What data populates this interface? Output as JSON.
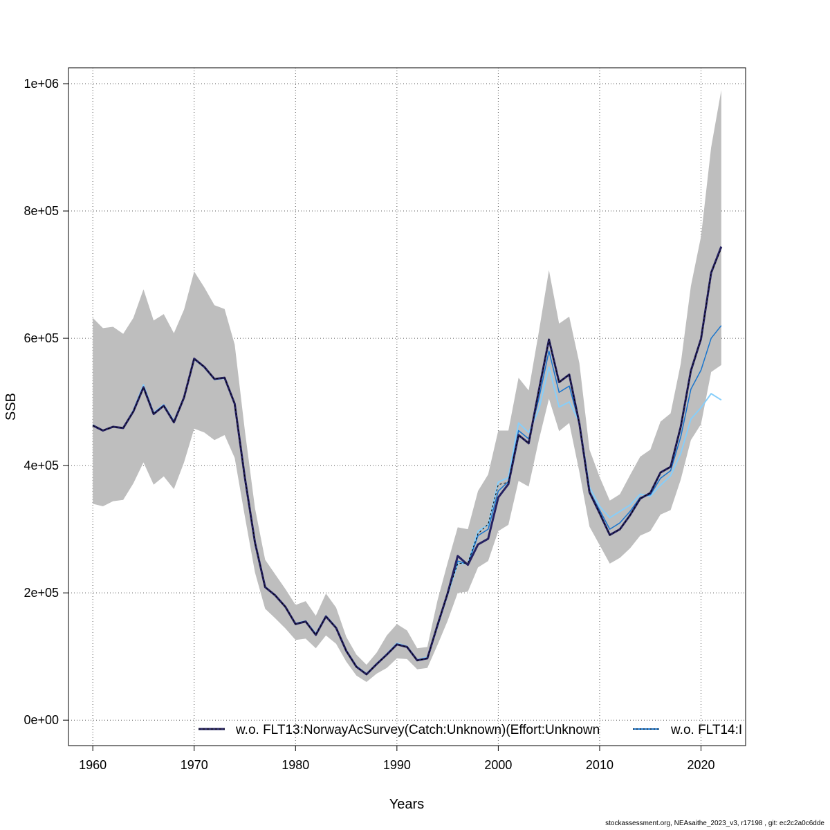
{
  "chart_data": {
    "type": "line",
    "xlabel": "Years",
    "ylabel": "SSB",
    "xlim": [
      1957.6,
      2024.4
    ],
    "ylim": [
      -40000,
      1025000
    ],
    "x_ticks": [
      1960,
      1970,
      1980,
      1990,
      2000,
      2010,
      2020
    ],
    "x_tick_labels": [
      "1960",
      "1970",
      "1980",
      "1990",
      "2000",
      "2010",
      "2020"
    ],
    "y_ticks": [
      0,
      200000,
      400000,
      600000,
      800000,
      1000000
    ],
    "y_tick_labels": [
      "0e+00",
      "2e+05",
      "4e+05",
      "6e+05",
      "8e+05",
      "1e+06"
    ],
    "grid": true,
    "legend_position": "bottom",
    "x": [
      1960,
      1961,
      1962,
      1963,
      1964,
      1965,
      1966,
      1967,
      1968,
      1969,
      1970,
      1971,
      1972,
      1973,
      1974,
      1975,
      1976,
      1977,
      1978,
      1979,
      1980,
      1981,
      1982,
      1983,
      1984,
      1985,
      1986,
      1987,
      1988,
      1989,
      1990,
      1991,
      1992,
      1993,
      1994,
      1995,
      1996,
      1997,
      1998,
      1999,
      2000,
      2001,
      2002,
      2003,
      2004,
      2005,
      2006,
      2007,
      2008,
      2009,
      2010,
      2011,
      2012,
      2013,
      2014,
      2015,
      2016,
      2017,
      2018,
      2019,
      2020,
      2021,
      2022
    ],
    "band": {
      "lower": [
        340000,
        336000,
        344000,
        346000,
        372000,
        405000,
        370000,
        383000,
        363000,
        405000,
        458000,
        452000,
        440000,
        448000,
        412000,
        320000,
        232000,
        175000,
        160000,
        144000,
        126000,
        128000,
        113000,
        133000,
        120000,
        92000,
        70000,
        60000,
        73000,
        82000,
        97000,
        96000,
        80000,
        82000,
        118000,
        156000,
        200000,
        202000,
        240000,
        250000,
        297000,
        307000,
        376000,
        367000,
        440000,
        505000,
        454000,
        467000,
        390000,
        304000,
        275000,
        246000,
        255000,
        270000,
        290000,
        297000,
        323000,
        330000,
        378000,
        440000,
        465000,
        547000,
        558000
      ],
      "upper": [
        632000,
        616000,
        618000,
        607000,
        632000,
        677000,
        628000,
        638000,
        608000,
        645000,
        705000,
        680000,
        652000,
        646000,
        590000,
        455000,
        333000,
        252000,
        229000,
        206000,
        181000,
        187000,
        164000,
        199000,
        177000,
        131000,
        103000,
        87000,
        106000,
        133000,
        151000,
        141000,
        113000,
        115000,
        188000,
        247000,
        303000,
        300000,
        360000,
        386000,
        455000,
        455000,
        538000,
        518000,
        610000,
        707000,
        623000,
        634000,
        561000,
        425000,
        382000,
        345000,
        355000,
        385000,
        414000,
        425000,
        469000,
        482000,
        560000,
        682000,
        760000,
        900000,
        990000
      ]
    },
    "series": [
      {
        "name": "w.o. FLT13:NorwayAcSurvey(Catch:Unknown)(Effort:Unknown",
        "color": "#262262",
        "style": "solid-thick",
        "values": [
          463000,
          455000,
          461000,
          459000,
          485000,
          523000,
          481000,
          494000,
          468000,
          507000,
          568000,
          555000,
          536000,
          538000,
          497000,
          381000,
          279000,
          209000,
          196000,
          178000,
          151000,
          155000,
          134000,
          163000,
          145000,
          109000,
          84000,
          72000,
          88000,
          103000,
          119000,
          115000,
          94000,
          97000,
          149000,
          199000,
          258000,
          244000,
          276000,
          285000,
          350000,
          371000,
          448000,
          435000,
          518000,
          598000,
          531000,
          543000,
          466000,
          358000,
          325000,
          291000,
          300000,
          322000,
          348000,
          357000,
          389000,
          398000,
          461000,
          549000,
          599000,
          703000,
          744000
        ]
      },
      {
        "name": "w.o. FLT13 dashed overlay",
        "color": "#000000",
        "style": "dashed",
        "legend": false,
        "values": [
          463000,
          455000,
          461000,
          459000,
          485000,
          523000,
          481000,
          494000,
          468000,
          507000,
          568000,
          555000,
          536000,
          538000,
          497000,
          381000,
          279000,
          209000,
          196000,
          178000,
          151000,
          155000,
          134000,
          163000,
          145000,
          109000,
          84000,
          72000,
          88000,
          103000,
          119000,
          115000,
          94000,
          97000,
          149000,
          199000,
          246000,
          247000,
          293000,
          308000,
          370000,
          374000,
          448000,
          435000,
          518000,
          598000,
          531000,
          543000,
          466000,
          358000,
          325000,
          291000,
          300000,
          322000,
          348000,
          357000,
          389000,
          398000,
          461000,
          549000,
          599000,
          703000,
          741000
        ]
      },
      {
        "name": "w.o. FLT14:I",
        "color": "#87cefa",
        "style": "solid",
        "values": [
          464000,
          455000,
          461000,
          459000,
          487000,
          527000,
          483000,
          496000,
          470000,
          508000,
          567000,
          554000,
          535000,
          537000,
          496000,
          380000,
          278000,
          210000,
          196000,
          178000,
          152000,
          156000,
          136000,
          164000,
          146000,
          110000,
          85000,
          73000,
          89000,
          104000,
          121000,
          116000,
          95000,
          99000,
          147000,
          197000,
          246000,
          246000,
          297000,
          307000,
          374000,
          381000,
          467000,
          452000,
          488000,
          555000,
          492000,
          500000,
          468000,
          366000,
          336000,
          318000,
          328000,
          338000,
          355000,
          352000,
          369000,
          384000,
          419000,
          473000,
          491000,
          513000,
          503000
        ]
      },
      {
        "name": "w.o. FLT14 base",
        "color": "#1874cd",
        "style": "solid-thin",
        "legend": false,
        "values": [
          463000,
          455000,
          461000,
          459000,
          486000,
          524000,
          482000,
          495000,
          469000,
          507000,
          567000,
          555000,
          536000,
          537000,
          497000,
          381000,
          279000,
          209000,
          196000,
          178000,
          151000,
          155000,
          134000,
          163000,
          145000,
          109000,
          84000,
          72000,
          88000,
          103000,
          119000,
          115000,
          94000,
          97000,
          148000,
          198000,
          250000,
          245000,
          290000,
          300000,
          360000,
          375000,
          455000,
          442000,
          505000,
          580000,
          515000,
          525000,
          466000,
          360000,
          330000,
          300000,
          310000,
          328000,
          350000,
          354000,
          380000,
          392000,
          445000,
          520000,
          550000,
          600000,
          620000
        ]
      }
    ]
  },
  "legend": [
    {
      "label": "w.o. FLT13:NorwayAcSurvey(Catch:Unknown)(Effort:Unknown",
      "color": "#262262"
    },
    {
      "label": "w.o. FLT14:I",
      "color": "#1874cd"
    }
  ],
  "footer": "stockassessment.org, NEAsaithe_2023_v3, r17198 , git: ec2c2a0c6dde"
}
